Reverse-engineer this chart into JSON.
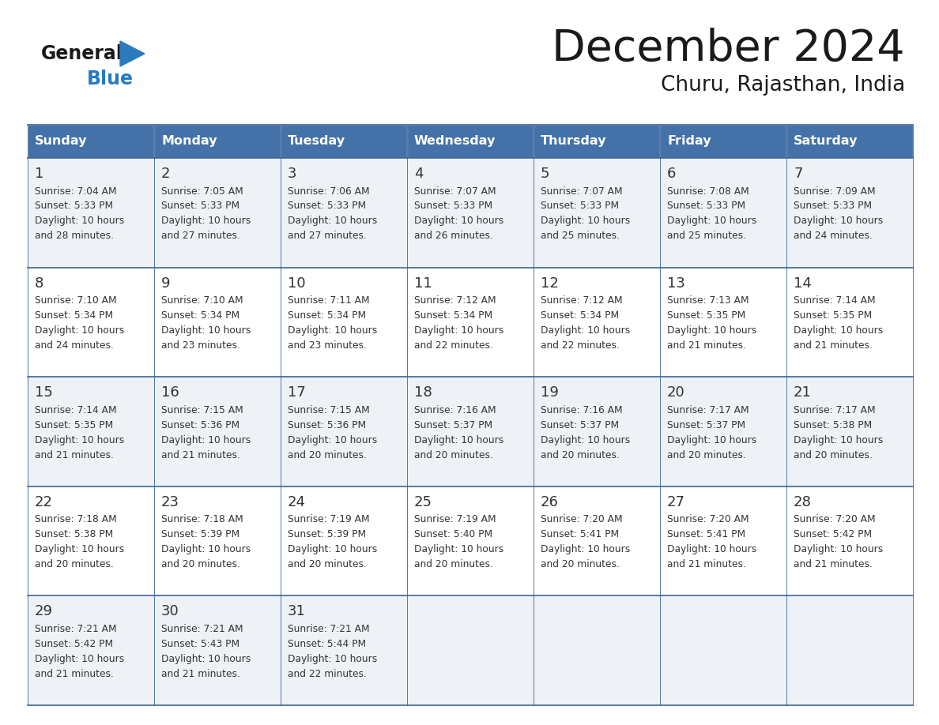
{
  "title": "December 2024",
  "subtitle": "Churu, Rajasthan, India",
  "header_color": "#4472a8",
  "header_text_color": "#ffffff",
  "cell_bg_even": "#eef2f7",
  "cell_bg_odd": "#ffffff",
  "border_color": "#3a6494",
  "text_color": "#333333",
  "title_color": "#1a1a1a",
  "logo_dark": "#1a1a1a",
  "logo_blue": "#2a7abf",
  "days_of_week": [
    "Sunday",
    "Monday",
    "Tuesday",
    "Wednesday",
    "Thursday",
    "Friday",
    "Saturday"
  ],
  "weeks": [
    [
      {
        "day": "1",
        "sunrise": "7:04 AM",
        "sunset": "5:33 PM",
        "dl1": "Daylight: 10 hours",
        "dl2": "and 28 minutes."
      },
      {
        "day": "2",
        "sunrise": "7:05 AM",
        "sunset": "5:33 PM",
        "dl1": "Daylight: 10 hours",
        "dl2": "and 27 minutes."
      },
      {
        "day": "3",
        "sunrise": "7:06 AM",
        "sunset": "5:33 PM",
        "dl1": "Daylight: 10 hours",
        "dl2": "and 27 minutes."
      },
      {
        "day": "4",
        "sunrise": "7:07 AM",
        "sunset": "5:33 PM",
        "dl1": "Daylight: 10 hours",
        "dl2": "and 26 minutes."
      },
      {
        "day": "5",
        "sunrise": "7:07 AM",
        "sunset": "5:33 PM",
        "dl1": "Daylight: 10 hours",
        "dl2": "and 25 minutes."
      },
      {
        "day": "6",
        "sunrise": "7:08 AM",
        "sunset": "5:33 PM",
        "dl1": "Daylight: 10 hours",
        "dl2": "and 25 minutes."
      },
      {
        "day": "7",
        "sunrise": "7:09 AM",
        "sunset": "5:33 PM",
        "dl1": "Daylight: 10 hours",
        "dl2": "and 24 minutes."
      }
    ],
    [
      {
        "day": "8",
        "sunrise": "7:10 AM",
        "sunset": "5:34 PM",
        "dl1": "Daylight: 10 hours",
        "dl2": "and 24 minutes."
      },
      {
        "day": "9",
        "sunrise": "7:10 AM",
        "sunset": "5:34 PM",
        "dl1": "Daylight: 10 hours",
        "dl2": "and 23 minutes."
      },
      {
        "day": "10",
        "sunrise": "7:11 AM",
        "sunset": "5:34 PM",
        "dl1": "Daylight: 10 hours",
        "dl2": "and 23 minutes."
      },
      {
        "day": "11",
        "sunrise": "7:12 AM",
        "sunset": "5:34 PM",
        "dl1": "Daylight: 10 hours",
        "dl2": "and 22 minutes."
      },
      {
        "day": "12",
        "sunrise": "7:12 AM",
        "sunset": "5:34 PM",
        "dl1": "Daylight: 10 hours",
        "dl2": "and 22 minutes."
      },
      {
        "day": "13",
        "sunrise": "7:13 AM",
        "sunset": "5:35 PM",
        "dl1": "Daylight: 10 hours",
        "dl2": "and 21 minutes."
      },
      {
        "day": "14",
        "sunrise": "7:14 AM",
        "sunset": "5:35 PM",
        "dl1": "Daylight: 10 hours",
        "dl2": "and 21 minutes."
      }
    ],
    [
      {
        "day": "15",
        "sunrise": "7:14 AM",
        "sunset": "5:35 PM",
        "dl1": "Daylight: 10 hours",
        "dl2": "and 21 minutes."
      },
      {
        "day": "16",
        "sunrise": "7:15 AM",
        "sunset": "5:36 PM",
        "dl1": "Daylight: 10 hours",
        "dl2": "and 21 minutes."
      },
      {
        "day": "17",
        "sunrise": "7:15 AM",
        "sunset": "5:36 PM",
        "dl1": "Daylight: 10 hours",
        "dl2": "and 20 minutes."
      },
      {
        "day": "18",
        "sunrise": "7:16 AM",
        "sunset": "5:37 PM",
        "dl1": "Daylight: 10 hours",
        "dl2": "and 20 minutes."
      },
      {
        "day": "19",
        "sunrise": "7:16 AM",
        "sunset": "5:37 PM",
        "dl1": "Daylight: 10 hours",
        "dl2": "and 20 minutes."
      },
      {
        "day": "20",
        "sunrise": "7:17 AM",
        "sunset": "5:37 PM",
        "dl1": "Daylight: 10 hours",
        "dl2": "and 20 minutes."
      },
      {
        "day": "21",
        "sunrise": "7:17 AM",
        "sunset": "5:38 PM",
        "dl1": "Daylight: 10 hours",
        "dl2": "and 20 minutes."
      }
    ],
    [
      {
        "day": "22",
        "sunrise": "7:18 AM",
        "sunset": "5:38 PM",
        "dl1": "Daylight: 10 hours",
        "dl2": "and 20 minutes."
      },
      {
        "day": "23",
        "sunrise": "7:18 AM",
        "sunset": "5:39 PM",
        "dl1": "Daylight: 10 hours",
        "dl2": "and 20 minutes."
      },
      {
        "day": "24",
        "sunrise": "7:19 AM",
        "sunset": "5:39 PM",
        "dl1": "Daylight: 10 hours",
        "dl2": "and 20 minutes."
      },
      {
        "day": "25",
        "sunrise": "7:19 AM",
        "sunset": "5:40 PM",
        "dl1": "Daylight: 10 hours",
        "dl2": "and 20 minutes."
      },
      {
        "day": "26",
        "sunrise": "7:20 AM",
        "sunset": "5:41 PM",
        "dl1": "Daylight: 10 hours",
        "dl2": "and 20 minutes."
      },
      {
        "day": "27",
        "sunrise": "7:20 AM",
        "sunset": "5:41 PM",
        "dl1": "Daylight: 10 hours",
        "dl2": "and 21 minutes."
      },
      {
        "day": "28",
        "sunrise": "7:20 AM",
        "sunset": "5:42 PM",
        "dl1": "Daylight: 10 hours",
        "dl2": "and 21 minutes."
      }
    ],
    [
      {
        "day": "29",
        "sunrise": "7:21 AM",
        "sunset": "5:42 PM",
        "dl1": "Daylight: 10 hours",
        "dl2": "and 21 minutes."
      },
      {
        "day": "30",
        "sunrise": "7:21 AM",
        "sunset": "5:43 PM",
        "dl1": "Daylight: 10 hours",
        "dl2": "and 21 minutes."
      },
      {
        "day": "31",
        "sunrise": "7:21 AM",
        "sunset": "5:44 PM",
        "dl1": "Daylight: 10 hours",
        "dl2": "and 22 minutes."
      },
      null,
      null,
      null,
      null
    ]
  ]
}
